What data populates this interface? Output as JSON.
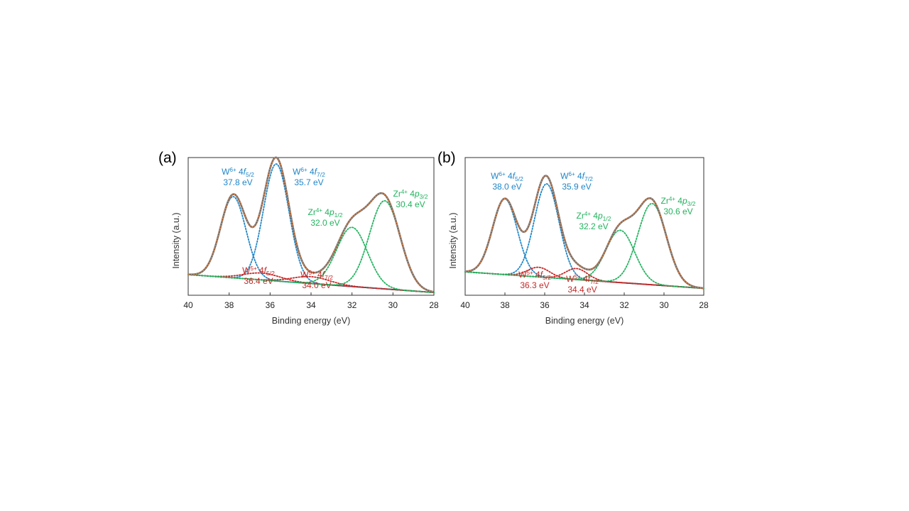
{
  "colors": {
    "W6": "#1f86c8",
    "W5": "#c62828",
    "Zr": "#22b35e",
    "background": "#2e8b3e",
    "envelope": "#d9824a",
    "experimental": "#6b6b6b",
    "frame": "#333333"
  },
  "chart_data": [
    {
      "type": "line",
      "panel_label": "(a)",
      "xlabel": "Binding energy (eV)",
      "ylabel": "Intensity (a.u.)",
      "xlim": [
        40,
        28
      ],
      "x_ticks": [
        40,
        38,
        36,
        34,
        32,
        30,
        28
      ],
      "x_reversed": true,
      "grid": false,
      "background": {
        "start": 0.15,
        "end": 0.02
      },
      "peaks": [
        {
          "name": "W6+ 4f5/2",
          "center": 37.8,
          "height": 0.59,
          "sigma": 0.62,
          "color_key": "W6",
          "label": {
            "element": "W",
            "charge": "6+",
            "orbital": "4f",
            "sub": "5/2",
            "energy": "37.8 eV"
          }
        },
        {
          "name": "W6+ 4f7/2",
          "center": 35.7,
          "height": 0.85,
          "sigma": 0.62,
          "color_key": "W6",
          "label": {
            "element": "W",
            "charge": "6+",
            "orbital": "4f",
            "sub": "7/2",
            "energy": "35.7 eV"
          }
        },
        {
          "name": "W5+ 4f5/2",
          "center": 36.4,
          "height": 0.05,
          "sigma": 0.9,
          "color_key": "W5",
          "label": {
            "element": "W",
            "charge": "5+",
            "orbital": "4f",
            "sub": "5/2",
            "energy": "36.4 eV"
          }
        },
        {
          "name": "W5+ 4f7/2",
          "center": 34.0,
          "height": 0.05,
          "sigma": 0.9,
          "color_key": "W5",
          "label": {
            "element": "W",
            "charge": "5+",
            "orbital": "4f",
            "sub": "7/2",
            "energy": "34.0 eV"
          }
        },
        {
          "name": "Zr4+ 4p1/2",
          "center": 32.0,
          "height": 0.43,
          "sigma": 0.75,
          "color_key": "Zr",
          "label": {
            "element": "Zr",
            "charge": "4+",
            "orbital": "4p",
            "sub": "1/2",
            "energy": "32.0 eV"
          }
        },
        {
          "name": "Zr4+ 4p3/2",
          "center": 30.4,
          "height": 0.64,
          "sigma": 0.75,
          "color_key": "Zr",
          "label": {
            "element": "Zr",
            "charge": "4+",
            "orbital": "4p",
            "sub": "3/2",
            "energy": "30.4 eV"
          }
        }
      ]
    },
    {
      "type": "line",
      "panel_label": "(b)",
      "xlabel": "Binding energy (eV)",
      "ylabel": "Intensity (a.u.)",
      "xlim": [
        40,
        28
      ],
      "x_ticks": [
        40,
        38,
        36,
        34,
        32,
        30,
        28
      ],
      "x_reversed": true,
      "grid": false,
      "background": {
        "start": 0.17,
        "end": 0.05
      },
      "peaks": [
        {
          "name": "W6+ 4f5/2",
          "center": 38.0,
          "height": 0.55,
          "sigma": 0.62,
          "color_key": "W6",
          "label": {
            "element": "W",
            "charge": "6+",
            "orbital": "4f",
            "sub": "5/2",
            "energy": "38.0 eV"
          }
        },
        {
          "name": "W6+ 4f7/2",
          "center": 35.9,
          "height": 0.68,
          "sigma": 0.62,
          "color_key": "W6",
          "label": {
            "element": "W",
            "charge": "6+",
            "orbital": "4f",
            "sub": "7/2",
            "energy": "35.9 eV"
          }
        },
        {
          "name": "W5+ 4f5/2",
          "center": 36.3,
          "height": 0.07,
          "sigma": 0.55,
          "color_key": "W5",
          "label": {
            "element": "W",
            "charge": "5+",
            "orbital": "4f",
            "sub": "5/2",
            "energy": "36.3 eV"
          }
        },
        {
          "name": "W5+ 4f7/2",
          "center": 34.4,
          "height": 0.08,
          "sigma": 0.55,
          "color_key": "W5",
          "label": {
            "element": "W",
            "charge": "5+",
            "orbital": "4f",
            "sub": "7/2",
            "energy": "34.4 eV"
          }
        },
        {
          "name": "Zr4+ 4p1/2",
          "center": 32.2,
          "height": 0.38,
          "sigma": 0.72,
          "color_key": "Zr",
          "label": {
            "element": "Zr",
            "charge": "4+",
            "orbital": "4p",
            "sub": "1/2",
            "energy": "32.2 eV"
          }
        },
        {
          "name": "Zr4+ 4p3/2",
          "center": 30.6,
          "height": 0.59,
          "sigma": 0.72,
          "color_key": "Zr",
          "label": {
            "element": "Zr",
            "charge": "4+",
            "orbital": "4p",
            "sub": "3/2",
            "energy": "30.6 eV"
          }
        }
      ]
    }
  ]
}
